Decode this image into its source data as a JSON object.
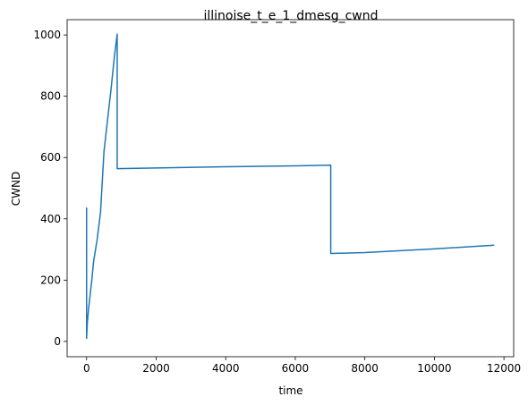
{
  "chart_data": {
    "type": "line",
    "title": "illinoise_t_e_1_dmesg_cwnd",
    "xlabel": "time",
    "ylabel": "CWND",
    "xlim": [
      -560,
      12280
    ],
    "ylim": [
      -50,
      1050
    ],
    "xticks": [
      0,
      2000,
      4000,
      6000,
      8000,
      10000,
      12000
    ],
    "yticks": [
      0,
      200,
      400,
      600,
      800,
      1000
    ],
    "xtick_labels": [
      "0",
      "2000",
      "4000",
      "6000",
      "8000",
      "10000",
      "12000"
    ],
    "ytick_labels": [
      "0",
      "200",
      "400",
      "600",
      "800",
      "1000"
    ],
    "grid": false,
    "color": "#1f77b4",
    "series": [
      {
        "x": [
          0,
          0,
          0,
          20,
          60,
          100,
          150,
          200,
          300,
          400,
          500,
          600,
          700,
          800,
          880,
          880,
          890,
          2000,
          4000,
          6000,
          7020,
          7020,
          7040,
          8000,
          10000,
          11720
        ],
        "y": [
          437,
          12,
          10,
          60,
          110,
          150,
          200,
          260,
          330,
          420,
          620,
          720,
          820,
          930,
          1003,
          564,
          564,
          566,
          570,
          573,
          575,
          287,
          287,
          290,
          302,
          314
        ]
      }
    ]
  }
}
